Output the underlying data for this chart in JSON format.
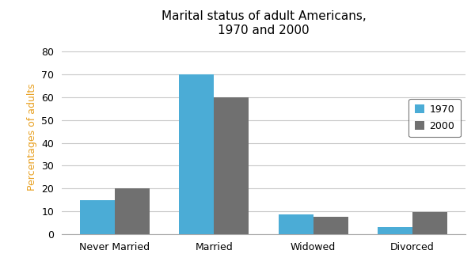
{
  "title": "Marital status of adult Americans,\n1970 and 2000",
  "categories": [
    "Never Married",
    "Married",
    "Widowed",
    "Divorced"
  ],
  "values_1970": [
    15,
    70,
    8.5,
    3
  ],
  "values_2000": [
    20,
    60,
    7.5,
    9.5
  ],
  "color_1970": "#4BACD6",
  "color_2000": "#707070",
  "ylabel": "Percentages of adults",
  "ylabel_color": "#E8A020",
  "legend_labels": [
    "1970",
    "2000"
  ],
  "ylim": [
    0,
    85
  ],
  "yticks": [
    0,
    10,
    20,
    30,
    40,
    50,
    60,
    70,
    80
  ],
  "bar_width": 0.35,
  "background_color": "#ffffff",
  "grid_color": "#c8c8c8"
}
